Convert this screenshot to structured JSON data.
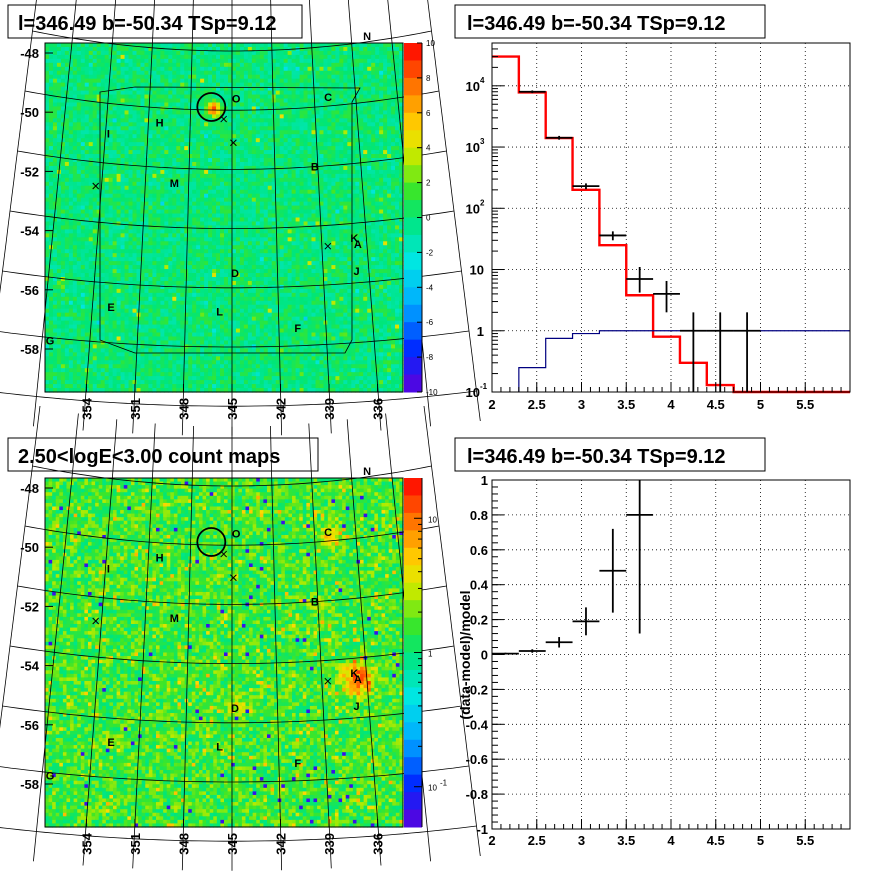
{
  "colors": {
    "model_total": "#ff0000",
    "model_component": "#000080",
    "data_points": "#000000",
    "grid": "#000000"
  },
  "panels": {
    "tsmap": {
      "title": "l=346.49 b=-50.34 TSp=9.12",
      "colorbar_ticks": [
        "10",
        "8",
        "6",
        "4",
        "2",
        "0",
        "-2",
        "-4",
        "-6",
        "-8",
        "-10"
      ],
      "colorbar_range": [
        -10,
        10
      ]
    },
    "spectrum": {
      "title": "l=346.49 b=-50.34 TSp=9.12"
    },
    "countmap": {
      "title": "2.50<logE<3.00 count maps",
      "colorbar_ticks": [
        "10",
        "1",
        "10"
      ],
      "colorbar_tick_exponent": "-1",
      "colorbar_range_log": [
        -1.3,
        1.3
      ]
    },
    "residual": {
      "title": "l=346.49 b=-50.34 TSp=9.12"
    }
  },
  "sky_map": {
    "lon_ticks": [
      "354",
      "351",
      "348",
      "345",
      "342",
      "339",
      "336"
    ],
    "lon_values": [
      354,
      351,
      348,
      345,
      342,
      339,
      336
    ],
    "lat_ticks": [
      "-48",
      "-50",
      "-52",
      "-54",
      "-56",
      "-58"
    ],
    "lat_values": [
      -48,
      -50,
      -52,
      -54,
      -56,
      -58
    ],
    "sources": [
      {
        "label": "N",
        "lon": 334.8,
        "lat": -47.8
      },
      {
        "label": "O",
        "lon": 344.7,
        "lat": -49.6
      },
      {
        "label": "C",
        "lon": 338.0,
        "lat": -49.7
      },
      {
        "label": "H",
        "lon": 350.2,
        "lat": -50.5
      },
      {
        "label": "I",
        "lon": 353.8,
        "lat": -51.0
      },
      {
        "label": "B",
        "lon": 339.2,
        "lat": -52.0
      },
      {
        "label": "M",
        "lon": 349.0,
        "lat": -52.5
      },
      {
        "label": "K",
        "lon": 336.8,
        "lat": -54.5
      },
      {
        "label": "A",
        "lon": 336.6,
        "lat": -54.7
      },
      {
        "label": "D",
        "lon": 344.8,
        "lat": -55.5
      },
      {
        "label": "J",
        "lon": 336.8,
        "lat": -55.6
      },
      {
        "label": "E",
        "lon": 352.8,
        "lat": -56.8
      },
      {
        "label": "L",
        "lon": 345.8,
        "lat": -56.8
      },
      {
        "label": "F",
        "lon": 340.8,
        "lat": -57.4
      },
      {
        "label": "G",
        "lon": 356.5,
        "lat": -58.1
      }
    ],
    "crosses": [
      {
        "lon": 345.6,
        "lat": -50.3
      },
      {
        "lon": 344.9,
        "lat": -51.1
      },
      {
        "lon": 354.4,
        "lat": -52.8
      },
      {
        "lon": 338.6,
        "lat": -54.7
      }
    ],
    "circle": {
      "lon": 346.5,
      "lat": -49.9
    }
  },
  "chart_data": [
    {
      "type": "heatmap",
      "title": "l=346.49 b=-50.34 TSp=9.12",
      "xlabel": "",
      "ylabel": "",
      "zlim": [
        -10,
        10
      ]
    },
    {
      "type": "line",
      "title": "l=346.49 b=-50.34 TSp=9.12",
      "xlabel": "",
      "ylabel": "",
      "xlim": [
        2,
        6
      ],
      "ylim": [
        0.1,
        50000
      ],
      "ylog": true,
      "xticks": [
        "2",
        "2.5",
        "3",
        "3.5",
        "4",
        "4.5",
        "5",
        "5.5"
      ],
      "xtick_values": [
        2,
        2.5,
        3,
        3.5,
        4,
        4.5,
        5,
        5.5
      ],
      "yticks": [
        {
          "value": 0.1,
          "base": "10",
          "exp": "-1"
        },
        {
          "value": 1,
          "base": "1",
          "exp": ""
        },
        {
          "value": 10,
          "base": "10",
          "exp": ""
        },
        {
          "value": 100,
          "base": "10",
          "exp": "2"
        },
        {
          "value": 1000,
          "base": "10",
          "exp": "3"
        },
        {
          "value": 10000,
          "base": "10",
          "exp": "4"
        }
      ],
      "edges": [
        2.0,
        2.3,
        2.6,
        2.9,
        3.2,
        3.5,
        3.8,
        4.1,
        4.4,
        4.7,
        5.0,
        6.0
      ],
      "series": [
        {
          "values": [
            30000,
            7800,
            1400,
            200,
            25,
            3.8,
            0.8,
            0.3,
            0.13,
            0.1,
            0.1,
            0.1
          ]
        },
        {
          "values": [
            0.05,
            0.25,
            0.75,
            0.9,
            1,
            1,
            1,
            1,
            1,
            1,
            1,
            1
          ]
        }
      ],
      "points": [
        {
          "x": 2.45,
          "y": 8000,
          "xerr": 0.15,
          "ylo": 7600,
          "yhi": 8400
        },
        {
          "x": 2.75,
          "y": 1420,
          "xerr": 0.15,
          "ylo": 1320,
          "yhi": 1520
        },
        {
          "x": 3.05,
          "y": 230,
          "xerr": 0.15,
          "ylo": 205,
          "yhi": 255
        },
        {
          "x": 3.35,
          "y": 36,
          "xerr": 0.15,
          "ylo": 30,
          "yhi": 42
        },
        {
          "x": 3.65,
          "y": 7,
          "xerr": 0.15,
          "ylo": 4.2,
          "yhi": 11
        },
        {
          "x": 3.95,
          "y": 4,
          "xerr": 0.15,
          "ylo": 2,
          "yhi": 6.5
        },
        {
          "x": 4.25,
          "y": 1,
          "xerr": 0.15,
          "ylo": 0.1,
          "yhi": 2
        },
        {
          "x": 4.55,
          "y": 1,
          "xerr": 0.15,
          "ylo": 0.1,
          "yhi": 2
        },
        {
          "x": 4.85,
          "y": 1,
          "xerr": 0.15,
          "ylo": 0.1,
          "yhi": 2
        }
      ]
    },
    {
      "type": "heatmap",
      "title": "2.50<logE<3.00 count maps",
      "xlabel": "",
      "ylabel": "",
      "zlim_log10": [
        -1.3,
        1.3
      ]
    },
    {
      "type": "scatter",
      "title": "l=346.49 b=-50.34 TSp=9.12",
      "xlabel": "",
      "ylabel": "(data-model)/model",
      "xlim": [
        2,
        6
      ],
      "ylim": [
        -1,
        1
      ],
      "xticks": [
        "2",
        "2.5",
        "3",
        "3.5",
        "4",
        "4.5",
        "5",
        "5.5"
      ],
      "xtick_values": [
        2,
        2.5,
        3,
        3.5,
        4,
        4.5,
        5,
        5.5
      ],
      "yticks": [
        "-1",
        "-0.8",
        "-0.6",
        "-0.4",
        "-0.2",
        "0",
        "0.2",
        "0.4",
        "0.6",
        "0.8",
        "1"
      ],
      "ytick_values": [
        -1,
        -0.8,
        -0.6,
        -0.4,
        -0.2,
        0,
        0.2,
        0.4,
        0.6,
        0.8,
        1
      ],
      "points": [
        {
          "x": 2.15,
          "y": 0.005,
          "xerr": 0.15,
          "ylo": 0.0,
          "yhi": 0.01
        },
        {
          "x": 2.45,
          "y": 0.02,
          "xerr": 0.15,
          "ylo": 0.01,
          "yhi": 0.03
        },
        {
          "x": 2.75,
          "y": 0.07,
          "xerr": 0.15,
          "ylo": 0.04,
          "yhi": 0.1
        },
        {
          "x": 3.05,
          "y": 0.19,
          "xerr": 0.15,
          "ylo": 0.11,
          "yhi": 0.27
        },
        {
          "x": 3.35,
          "y": 0.48,
          "xerr": 0.15,
          "ylo": 0.24,
          "yhi": 0.72
        },
        {
          "x": 3.65,
          "y": 0.8,
          "xerr": 0.15,
          "ylo": 0.12,
          "yhi": 1.0
        }
      ]
    }
  ]
}
